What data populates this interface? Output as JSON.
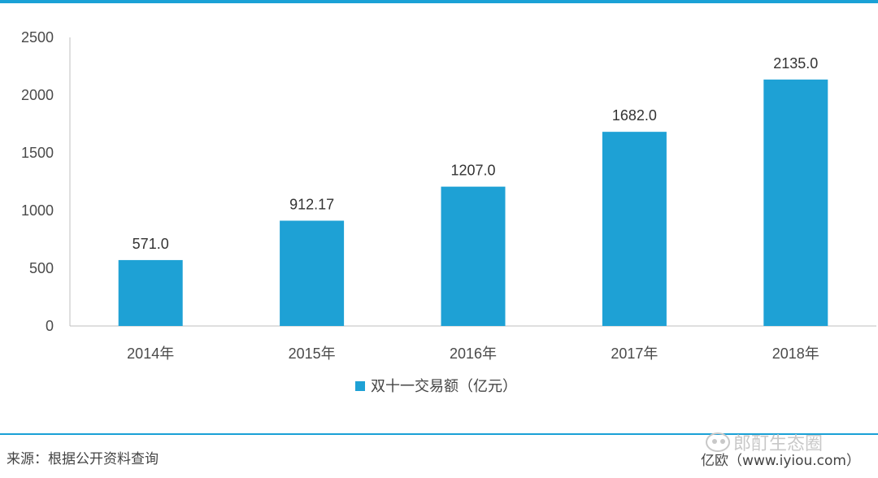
{
  "chart_data": {
    "type": "bar",
    "categories": [
      "2014年",
      "2015年",
      "2016年",
      "2017年",
      "2018年"
    ],
    "series": [
      {
        "name": "双十一交易额（亿元）",
        "values": [
          571.0,
          912.17,
          1207.0,
          1682.0,
          2135.0
        ]
      }
    ],
    "data_labels": [
      "571.0",
      "912.17",
      "1207.0",
      "1682.0",
      "2135.0"
    ],
    "title": "",
    "xlabel": "",
    "ylabel": "",
    "ylim": [
      0,
      2500
    ],
    "yticks": [
      0,
      500,
      1000,
      1500,
      2000,
      2500
    ],
    "grid": false,
    "legend_position": "bottom",
    "bar_color": "#1ea1d5"
  },
  "footer": {
    "source": "来源：根据公开资料查询",
    "watermark": "郎酊生态圈",
    "credit": "亿欧（www.iyiou.com）"
  }
}
